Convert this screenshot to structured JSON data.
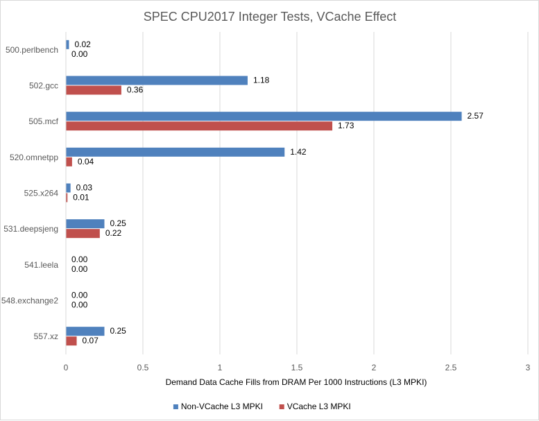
{
  "chart_data": {
    "type": "bar",
    "orientation": "horizontal",
    "title": "SPEC CPU2017 Integer Tests, VCache Effect",
    "xlabel": "Demand Data Cache Fills from DRAM Per 1000 Instructions (L3 MPKI)",
    "ylabel": "",
    "xlim": [
      0,
      3
    ],
    "xticks": [
      0,
      0.5,
      1,
      1.5,
      2,
      2.5,
      3
    ],
    "xtick_labels": [
      "0",
      "0.5",
      "1",
      "1.5",
      "2",
      "2.5",
      "3"
    ],
    "grid": true,
    "legend_position": "bottom",
    "categories": [
      "500.perlbench",
      "502.gcc",
      "505.mcf",
      "520.omnetpp",
      "525.x264",
      "531.deepsjeng",
      "541.leela",
      "548.exchange2",
      "557.xz"
    ],
    "series": [
      {
        "name": "Non-VCache L3 MPKI",
        "color": "#4f81bd",
        "values": [
          0.02,
          1.18,
          2.57,
          1.42,
          0.03,
          0.25,
          0.0,
          0.0,
          0.25
        ],
        "labels": [
          "0.02",
          "1.18",
          "2.57",
          "1.42",
          "0.03",
          "0.25",
          "0.00",
          "0.00",
          "0.25"
        ]
      },
      {
        "name": "VCache L3 MPKI",
        "color": "#c0504d",
        "values": [
          0.0,
          0.36,
          1.73,
          0.04,
          0.01,
          0.22,
          0.0,
          0.0,
          0.07
        ],
        "labels": [
          "0.00",
          "0.36",
          "1.73",
          "0.04",
          "0.01",
          "0.22",
          "0.00",
          "0.00",
          "0.07"
        ]
      }
    ]
  }
}
